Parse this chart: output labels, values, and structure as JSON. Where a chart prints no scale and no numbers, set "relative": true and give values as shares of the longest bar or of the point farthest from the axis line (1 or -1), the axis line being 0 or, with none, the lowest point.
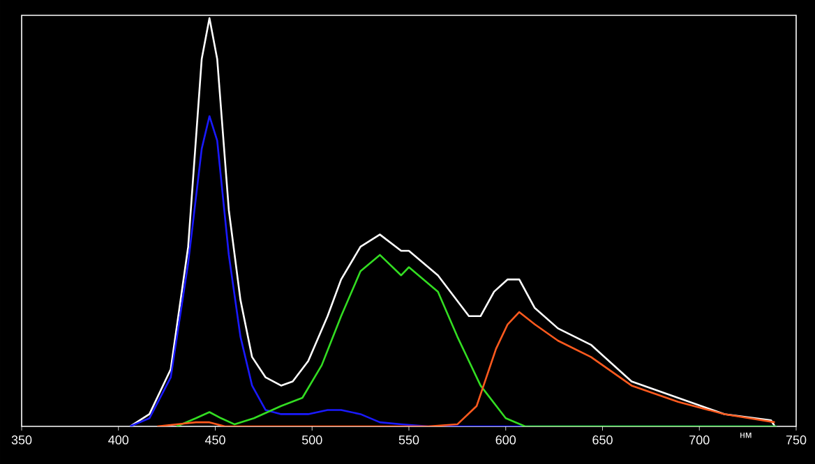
{
  "chart_data": {
    "type": "line",
    "relative": true,
    "xlabel": "нм",
    "xlim": [
      350,
      750
    ],
    "xticks": [
      350,
      400,
      450,
      500,
      550,
      600,
      650,
      700,
      750
    ],
    "series": [
      {
        "color": "#ffffff",
        "x": [
          406,
          416,
          427,
          436,
          443,
          447,
          451,
          457,
          463,
          469,
          476,
          484,
          490,
          498,
          508,
          515,
          525,
          535,
          546,
          550,
          565,
          581,
          587,
          594,
          601,
          607,
          615,
          627,
          644,
          665,
          689,
          713,
          737,
          739
        ],
        "values": [
          0,
          0.03,
          0.14,
          0.44,
          0.9,
          1,
          0.9,
          0.53,
          0.31,
          0.17,
          0.12,
          0.1,
          0.11,
          0.16,
          0.27,
          0.36,
          0.44,
          0.47,
          0.43,
          0.43,
          0.37,
          0.27,
          0.27,
          0.33,
          0.36,
          0.36,
          0.29,
          0.24,
          0.2,
          0.11,
          0.07,
          0.03,
          0.015,
          0
        ]
      },
      {
        "color": "#1a1aff",
        "x": [
          406,
          416,
          427,
          436,
          443,
          447,
          451,
          457,
          463,
          469,
          476,
          484,
          498,
          508,
          515,
          525,
          535,
          546,
          560,
          740
        ],
        "values": [
          0,
          0.02,
          0.12,
          0.4,
          0.68,
          0.76,
          0.7,
          0.42,
          0.22,
          0.1,
          0.04,
          0.03,
          0.03,
          0.04,
          0.04,
          0.03,
          0.01,
          0.005,
          0,
          0
        ]
      },
      {
        "color": "#33dd22",
        "x": [
          430,
          440,
          447,
          453,
          460,
          470,
          484,
          495,
          505,
          515,
          525,
          535,
          546,
          550,
          565,
          575,
          587,
          600,
          610,
          740
        ],
        "values": [
          0,
          0.02,
          0.035,
          0.02,
          0.005,
          0.02,
          0.05,
          0.07,
          0.15,
          0.27,
          0.38,
          0.42,
          0.37,
          0.39,
          0.33,
          0.22,
          0.1,
          0.02,
          0,
          0
        ]
      },
      {
        "color": "#ff5a1e",
        "x": [
          420,
          440,
          447,
          455,
          560,
          575,
          585,
          595,
          601,
          607,
          615,
          627,
          644,
          665,
          689,
          713,
          739
        ],
        "values": [
          0,
          0.01,
          0.01,
          0,
          0,
          0.005,
          0.05,
          0.19,
          0.25,
          0.28,
          0.25,
          0.21,
          0.17,
          0.1,
          0.06,
          0.03,
          0.01
        ]
      }
    ]
  }
}
